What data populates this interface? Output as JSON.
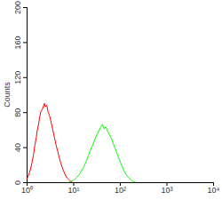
{
  "chart_data": {
    "type": "line",
    "y_label": "Counts",
    "log": "x",
    "xlim": [
      1,
      10000
    ],
    "xticks": [
      {
        "value": 1,
        "label": "10⁰"
      },
      {
        "value": 10,
        "label": "10¹"
      },
      {
        "value": 100,
        "label": "10²"
      },
      {
        "value": 1000,
        "label": "10³"
      },
      {
        "value": 10000,
        "label": "10⁴"
      }
    ],
    "ylim": [
      0,
      200
    ],
    "yticks": [
      0,
      40,
      80,
      120,
      160,
      200
    ],
    "series": [
      {
        "color": "#ff0000",
        "x": [
          1.0,
          1.1,
          1.2,
          1.3,
          1.4,
          1.5,
          1.6,
          1.7,
          1.8,
          1.9,
          2.0,
          2.2,
          2.4,
          2.5,
          2.7,
          2.9,
          3.1,
          3.3,
          3.5,
          3.8,
          4.0,
          4.3,
          4.6,
          5.0,
          5.4,
          5.8,
          6.3,
          6.8,
          7.3,
          8.0,
          8.8,
          9.5
        ],
        "values": [
          3,
          8,
          14,
          22,
          31,
          42,
          50,
          60,
          66,
          74,
          80,
          84,
          90,
          86,
          88,
          80,
          76,
          70,
          64,
          55,
          50,
          42,
          36,
          28,
          22,
          17,
          12,
          8,
          5,
          3,
          1,
          0
        ]
      },
      {
        "color": "#00ff00",
        "x": [
          8,
          9,
          10,
          11,
          12,
          13.5,
          15,
          17,
          19,
          21,
          23,
          26,
          29,
          32,
          35,
          38,
          42,
          46,
          50,
          55,
          60,
          66,
          72,
          80,
          88,
          97,
          108,
          120,
          135,
          150,
          170,
          190,
          220
        ],
        "values": [
          0,
          1,
          2,
          4,
          6,
          9,
          13,
          18,
          24,
          30,
          36,
          42,
          49,
          54,
          58,
          62,
          66,
          61,
          63,
          58,
          54,
          50,
          44,
          38,
          32,
          26,
          20,
          14,
          9,
          6,
          3,
          1,
          0
        ]
      }
    ]
  }
}
